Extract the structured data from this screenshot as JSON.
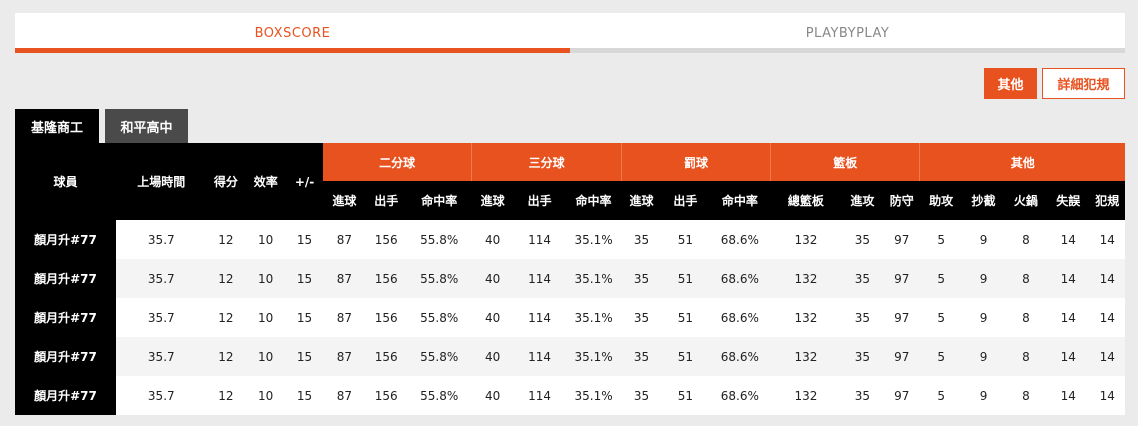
{
  "tabs": [
    "BOXSCORE",
    "PLAYBYPLAY"
  ],
  "buttons": {
    "other": "其他",
    "fouls": "詳細犯規"
  },
  "teams": [
    "基隆商工",
    "和平高中"
  ],
  "table": {
    "player_header": "球員",
    "basic_headers": [
      "上場時間",
      "得分",
      "效率",
      "+/-"
    ],
    "groups": [
      "二分球",
      "三分球",
      "罰球",
      "籃板",
      "其他"
    ],
    "sub_headers": [
      "進球",
      "出手",
      "命中率",
      "進球",
      "出手",
      "命中率",
      "進球",
      "出手",
      "命中率",
      "總籃板",
      "進攻",
      "防守",
      "助攻",
      "抄截",
      "火鍋",
      "失誤",
      "犯規"
    ],
    "rows": [
      {
        "player": "顏月升#77",
        "cells": [
          "35.7",
          "12",
          "10",
          "15",
          "87",
          "156",
          "55.8%",
          "40",
          "114",
          "35.1%",
          "35",
          "51",
          "68.6%",
          "132",
          "35",
          "97",
          "5",
          "9",
          "8",
          "14",
          "14"
        ]
      },
      {
        "player": "顏月升#77",
        "cells": [
          "35.7",
          "12",
          "10",
          "15",
          "87",
          "156",
          "55.8%",
          "40",
          "114",
          "35.1%",
          "35",
          "51",
          "68.6%",
          "132",
          "35",
          "97",
          "5",
          "9",
          "8",
          "14",
          "14"
        ]
      },
      {
        "player": "顏月升#77",
        "cells": [
          "35.7",
          "12",
          "10",
          "15",
          "87",
          "156",
          "55.8%",
          "40",
          "114",
          "35.1%",
          "35",
          "51",
          "68.6%",
          "132",
          "35",
          "97",
          "5",
          "9",
          "8",
          "14",
          "14"
        ]
      },
      {
        "player": "顏月升#77",
        "cells": [
          "35.7",
          "12",
          "10",
          "15",
          "87",
          "156",
          "55.8%",
          "40",
          "114",
          "35.1%",
          "35",
          "51",
          "68.6%",
          "132",
          "35",
          "97",
          "5",
          "9",
          "8",
          "14",
          "14"
        ]
      },
      {
        "player": "顏月升#77",
        "cells": [
          "35.7",
          "12",
          "10",
          "15",
          "87",
          "156",
          "55.8%",
          "40",
          "114",
          "35.1%",
          "35",
          "51",
          "68.6%",
          "132",
          "35",
          "97",
          "5",
          "9",
          "8",
          "14",
          "14"
        ]
      }
    ]
  }
}
